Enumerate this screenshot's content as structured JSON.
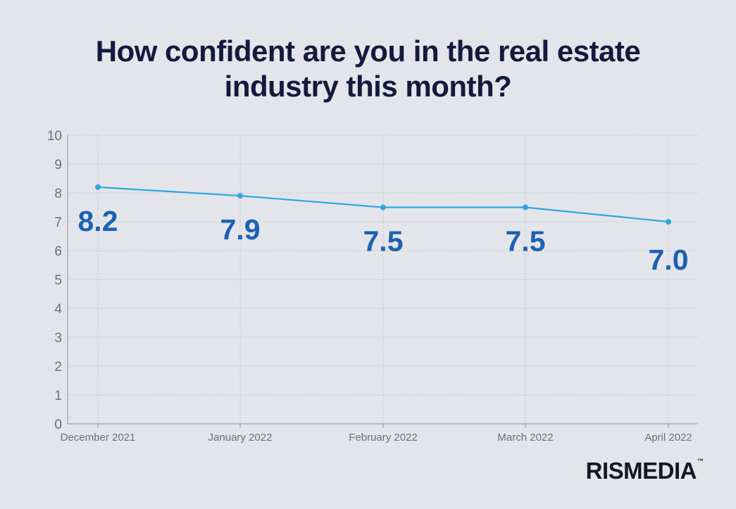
{
  "brand": {
    "name": "RISMEDIA",
    "tm": "™"
  },
  "chart_data": {
    "type": "line",
    "title": "How confident are you in the real estate industry this month?",
    "categories": [
      "December 2021",
      "January 2022",
      "February 2022",
      "March 2022",
      "April 2022"
    ],
    "series": [
      {
        "values": [
          8.2,
          7.9,
          7.5,
          7.5,
          7.0
        ],
        "labels": [
          "8.2",
          "7.9",
          "7.5",
          "7.5",
          "7.0"
        ]
      }
    ],
    "ylim": [
      0,
      10
    ],
    "yticks": [
      0,
      1,
      2,
      3,
      4,
      5,
      6,
      7,
      8,
      9,
      10
    ],
    "grid": true,
    "colors": {
      "line": "#2ea6e0",
      "labels": "#1c62b0",
      "title": "#141a3d"
    }
  }
}
